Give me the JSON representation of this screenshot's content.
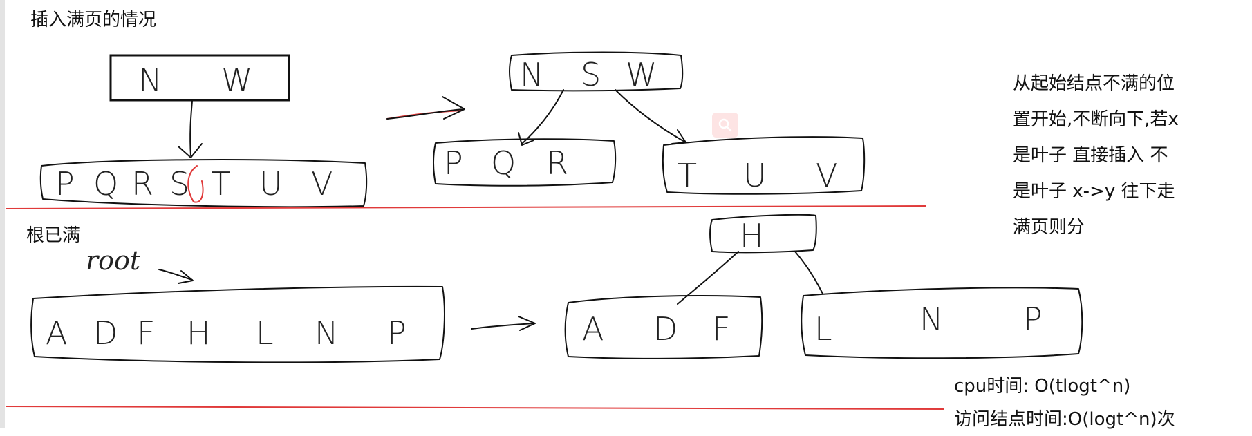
{
  "headings": {
    "full_page": "插入满页的情况",
    "root_full": "根已满",
    "root_scribble": "root"
  },
  "diagram1": {
    "root_before": [
      "N",
      "W"
    ],
    "leaf_before": [
      "P",
      "Q",
      "R",
      "S",
      "T",
      "U",
      "V"
    ],
    "root_after": [
      "N",
      "S",
      "W"
    ],
    "left_after": [
      "P",
      "Q",
      "R"
    ],
    "right_after": [
      "T",
      "U",
      "V"
    ]
  },
  "diagram2": {
    "root_before": [
      "A",
      "D",
      "F",
      "H",
      "L",
      "N",
      "P"
    ],
    "new_root": [
      "H"
    ],
    "left_after": [
      "A",
      "D",
      "F"
    ],
    "right_after": [
      "L",
      "N",
      "P"
    ]
  },
  "side_note": {
    "lines": [
      "从起始结点不满的位",
      "置开始,不断向下,若x",
      "是叶子 直接插入 不",
      "是叶子 x->y 往下走",
      "满页则分"
    ]
  },
  "complexity": {
    "cpu_time": "cpu时间: O(tlogt^n)",
    "access_time": "访问结点时间:O(logt^n)次"
  },
  "colors": {
    "ink": "#111111",
    "red_line": "#e03a3a",
    "badge": "#fde4e4"
  },
  "icons": {
    "badge": "search-icon"
  }
}
